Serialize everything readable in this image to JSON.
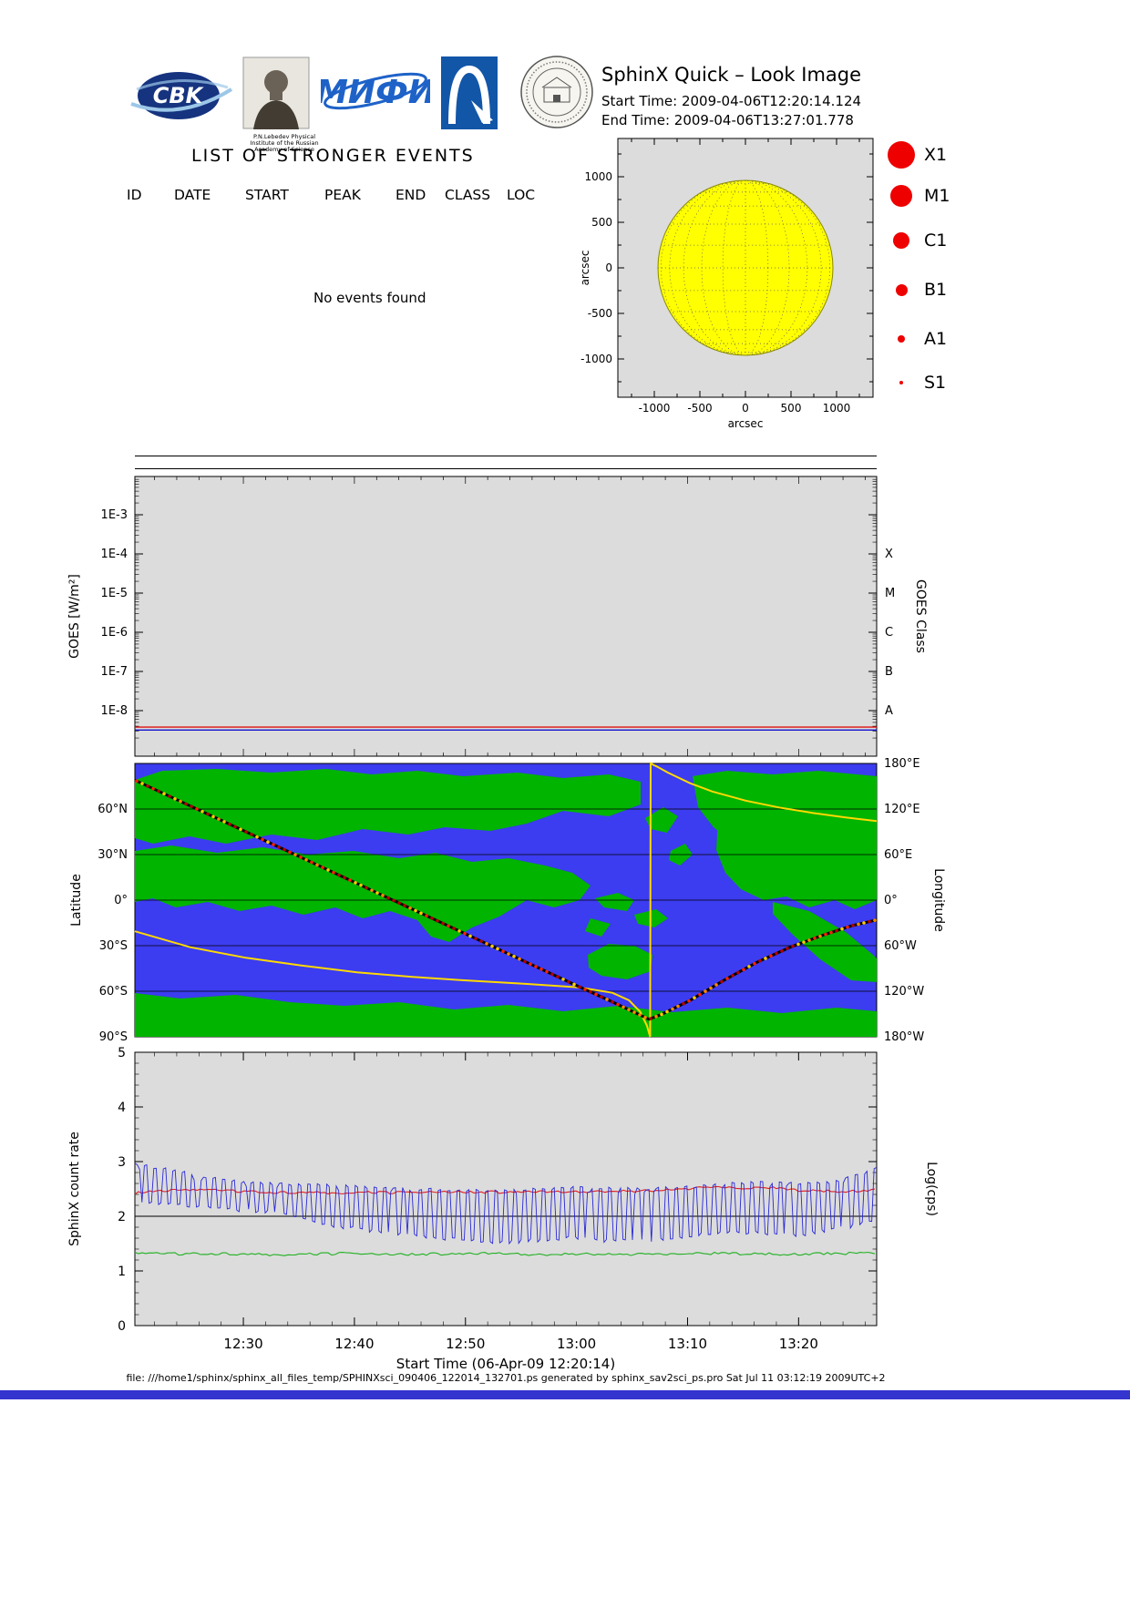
{
  "page": {
    "bottom_bar_color": "#3434cf"
  },
  "header": {
    "title": "SphinX Quick – Look Image",
    "start_time": "Start Time: 2009-04-06T12:20:14.124",
    "end_time": "End Time: 2009-04-06T13:27:01.778",
    "lebedev_caption": "P.N.Lebedev Physical Institute of the Russian Academy of Science",
    "logos": [
      {
        "name": "cbk-pan-logo",
        "text": "CBK"
      },
      {
        "name": "lebedev-institute-logo",
        "text": ""
      },
      {
        "name": "mephi-logo",
        "text": "МИФИ"
      },
      {
        "name": "arch-logo",
        "text": ""
      },
      {
        "name": "observatory-seal-logo",
        "text": ""
      }
    ]
  },
  "events": {
    "title": "LIST OF STRONGER EVENTS",
    "columns": [
      "ID",
      "DATE",
      "START",
      "PEAK",
      "END",
      "CLASS",
      "LOC"
    ],
    "empty_message": "No events found",
    "rows": []
  },
  "sun_plot": {
    "x_ticks": [
      "-1000",
      "-500",
      "0",
      "500",
      "1000"
    ],
    "y_ticks": [
      "1000",
      "500",
      "0",
      "-500",
      "-1000"
    ],
    "xlabel": "arcsec",
    "ylabel": "arcsec",
    "disk_color": "#ffff00",
    "legend_color": "#ee0000",
    "legend": [
      {
        "label": "X1",
        "diameter": 30
      },
      {
        "label": "M1",
        "diameter": 24
      },
      {
        "label": "C1",
        "diameter": 18
      },
      {
        "label": "B1",
        "diameter": 13
      },
      {
        "label": "A1",
        "diameter": 8
      },
      {
        "label": "S1",
        "diameter": 4
      }
    ]
  },
  "footer": {
    "text": "file: ///home1/sphinx/sphinx_all_files_temp/SPHINXsci_090406_122014_132701.ps generated by sphinx_sav2sci_ps.pro Sat Jul 11 03:12:19 2009UTC+2"
  },
  "chart_data": [
    {
      "id": "goes_flux",
      "type": "line",
      "title": "",
      "ylabel": "GOES [W/m²]",
      "right_label": "GOES Class",
      "y_ticks": [
        "1E-3",
        "1E-4",
        "1E-5",
        "1E-6",
        "1E-7",
        "1E-8"
      ],
      "right_ticks": [
        "X",
        "M",
        "C",
        "B",
        "A"
      ],
      "ylim_log": [
        1.5e-09,
        0.01
      ],
      "grid": false,
      "series": [
        {
          "name": "goes-long-channel",
          "color": "#dd1111",
          "value": 3.8e-09
        },
        {
          "name": "goes-short-channel",
          "color": "#1111cc",
          "value": 3.2e-09
        }
      ]
    },
    {
      "id": "ground_track",
      "type": "line",
      "title": "",
      "left_label": "Latitude",
      "right_label": "Longitude",
      "lat_ticks": [
        "60°N",
        "30°N",
        "0°",
        "30°S",
        "60°S",
        "90°S"
      ],
      "lon_ticks": [
        "180°E",
        "120°E",
        "60°E",
        "0°",
        "60°W",
        "120°W",
        "180°W"
      ],
      "t_range": [
        0,
        66.8
      ],
      "ocean_color": "#3c3cf0",
      "land_color": "#00b400",
      "track_color": "#000000",
      "sun_color": "#ffd900",
      "track_dot_colors": [
        "#ff2200",
        "#b30000",
        "#ff8800",
        "#ffcc00"
      ],
      "orbit_lat": [
        [
          0,
          79
        ],
        [
          5,
          62
        ],
        [
          10,
          45
        ],
        [
          15,
          28
        ],
        [
          20,
          11
        ],
        [
          25,
          -6
        ],
        [
          30,
          -23
        ],
        [
          35,
          -40
        ],
        [
          40,
          -57
        ],
        [
          43,
          -67
        ],
        [
          45,
          -74
        ],
        [
          46.3,
          -78.5
        ],
        [
          47.5,
          -75
        ],
        [
          50,
          -66
        ],
        [
          53,
          -53
        ],
        [
          56,
          -41
        ],
        [
          59,
          -31
        ],
        [
          62,
          -23
        ],
        [
          64.5,
          -17
        ],
        [
          66.8,
          -13
        ]
      ],
      "orbit_lon": [
        [
          0,
          -41
        ],
        [
          5,
          -62
        ],
        [
          10,
          -76
        ],
        [
          15,
          -86
        ],
        [
          20,
          -95
        ],
        [
          25,
          -101
        ],
        [
          30,
          -106
        ],
        [
          35,
          -110
        ],
        [
          40,
          -115
        ],
        [
          43,
          -122
        ],
        [
          44.5,
          -132
        ],
        [
          45.5,
          -147
        ],
        [
          46.1,
          -165
        ],
        [
          46.4,
          -180
        ],
        [
          46.45,
          180
        ],
        [
          47,
          176
        ],
        [
          48,
          168
        ],
        [
          50,
          154
        ],
        [
          52,
          143
        ],
        [
          55,
          131
        ],
        [
          58,
          122
        ],
        [
          61,
          115
        ],
        [
          64,
          109
        ],
        [
          66.8,
          104
        ]
      ]
    },
    {
      "id": "sphinx_count_rate",
      "type": "line",
      "title": "",
      "ylabel": "SphinX count rate",
      "right_label": "Log(cps)",
      "xlabel": "Start Time (06-Apr-09 12:20:14)",
      "ylim": [
        0,
        5
      ],
      "y_ticks": [
        "0",
        "1",
        "2",
        "3",
        "4",
        "5"
      ],
      "x_ticks": [
        "12:30",
        "12:40",
        "12:50",
        "13:00",
        "13:10",
        "13:20"
      ],
      "x_tick_minutes": [
        9.77,
        19.77,
        29.77,
        39.77,
        49.77,
        59.77
      ],
      "t_range": [
        0,
        66.8
      ],
      "series": [
        {
          "name": "detector-red",
          "color": "#e02020",
          "points": [
            [
              0,
              2.42
            ],
            [
              3,
              2.47
            ],
            [
              6,
              2.5
            ],
            [
              9,
              2.46
            ],
            [
              12,
              2.44
            ],
            [
              15,
              2.44
            ],
            [
              18,
              2.43
            ],
            [
              21,
              2.44
            ],
            [
              24,
              2.43
            ],
            [
              27,
              2.45
            ],
            [
              30,
              2.44
            ],
            [
              33,
              2.44
            ],
            [
              36,
              2.45
            ],
            [
              39,
              2.44
            ],
            [
              42,
              2.46
            ],
            [
              45,
              2.46
            ],
            [
              48,
              2.48
            ],
            [
              51,
              2.52
            ],
            [
              53,
              2.54
            ],
            [
              55,
              2.5
            ],
            [
              57,
              2.53
            ],
            [
              59,
              2.48
            ],
            [
              62,
              2.46
            ],
            [
              64,
              2.46
            ],
            [
              66.8,
              2.48
            ]
          ]
        },
        {
          "name": "detector-green",
          "color": "#20b020",
          "points": [
            [
              0,
              1.34
            ],
            [
              4,
              1.31
            ],
            [
              8,
              1.32
            ],
            [
              12,
              1.3
            ],
            [
              16,
              1.31
            ],
            [
              20,
              1.32
            ],
            [
              24,
              1.3
            ],
            [
              28,
              1.31
            ],
            [
              32,
              1.32
            ],
            [
              36,
              1.3
            ],
            [
              40,
              1.31
            ],
            [
              44,
              1.3
            ],
            [
              48,
              1.31
            ],
            [
              52,
              1.32
            ],
            [
              56,
              1.31
            ],
            [
              60,
              1.31
            ],
            [
              64,
              1.32
            ],
            [
              66.8,
              1.34
            ]
          ]
        },
        {
          "name": "detector-blue",
          "color": "#2828d8",
          "oscillation_period_min": 0.85,
          "hi": [
            [
              0,
              2.95
            ],
            [
              3,
              2.86
            ],
            [
              6,
              2.74
            ],
            [
              9,
              2.64
            ],
            [
              12,
              2.6
            ],
            [
              15,
              2.58
            ],
            [
              18,
              2.56
            ],
            [
              21,
              2.53
            ],
            [
              24,
              2.5
            ],
            [
              27,
              2.49
            ],
            [
              30,
              2.47
            ],
            [
              33,
              2.47
            ],
            [
              36,
              2.5
            ],
            [
              39,
              2.52
            ],
            [
              42,
              2.52
            ],
            [
              45,
              2.5
            ],
            [
              48,
              2.52
            ],
            [
              51,
              2.55
            ],
            [
              54,
              2.6
            ],
            [
              57,
              2.62
            ],
            [
              60,
              2.6
            ],
            [
              63,
              2.62
            ],
            [
              66,
              2.85
            ],
            [
              66.8,
              2.9
            ]
          ],
          "lo": [
            [
              0,
              2.28
            ],
            [
              3,
              2.22
            ],
            [
              6,
              2.16
            ],
            [
              9,
              2.12
            ],
            [
              12,
              2.08
            ],
            [
              15,
              1.96
            ],
            [
              18,
              1.82
            ],
            [
              21,
              1.74
            ],
            [
              24,
              1.66
            ],
            [
              27,
              1.6
            ],
            [
              30,
              1.56
            ],
            [
              33,
              1.52
            ],
            [
              36,
              1.56
            ],
            [
              39,
              1.6
            ],
            [
              42,
              1.56
            ],
            [
              45,
              1.54
            ],
            [
              48,
              1.6
            ],
            [
              51,
              1.66
            ],
            [
              54,
              1.72
            ],
            [
              57,
              1.68
            ],
            [
              60,
              1.66
            ],
            [
              63,
              1.76
            ],
            [
              66,
              1.88
            ],
            [
              66.8,
              1.95
            ]
          ]
        }
      ]
    }
  ]
}
